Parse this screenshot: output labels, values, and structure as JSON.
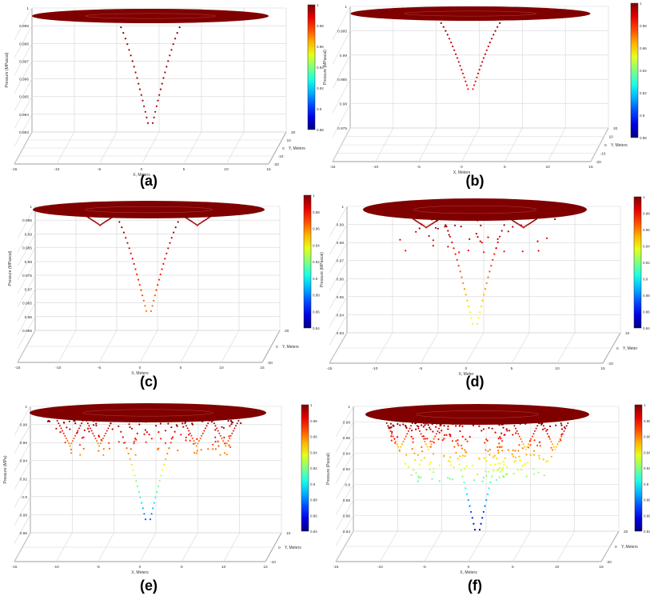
{
  "figure": {
    "panels": [
      {
        "id": "a",
        "caption": "(a)"
      },
      {
        "id": "b",
        "caption": "(b)"
      },
      {
        "id": "c",
        "caption": "(c)"
      },
      {
        "id": "d",
        "caption": "(d)"
      },
      {
        "id": "e",
        "caption": "(e)"
      },
      {
        "id": "f",
        "caption": "(f)"
      }
    ]
  },
  "chart_data": [
    {
      "id": "a",
      "type": "scatter",
      "title": "",
      "xlabel": "X, Meters",
      "ylabel": "Y, Meters",
      "zlabel": "Pressure (MPascal)",
      "xticks": [
        "-15",
        "-10",
        "-5",
        "0",
        "5",
        "10",
        "15"
      ],
      "yticks": [
        "20",
        "10",
        "0",
        "-10",
        "-20"
      ],
      "zticks": [
        "1",
        "0.999",
        "0.998",
        "0.997",
        "0.996",
        "0.995",
        "0.994",
        "0.993"
      ],
      "zlim": [
        0.993,
        1
      ],
      "colorbar": {
        "min": 0.88,
        "max": 1,
        "ticks": [
          "1",
          "0.98",
          "0.96",
          "0.94",
          "0.92",
          "0.9",
          "0.88"
        ]
      },
      "disk_value": 1,
      "funnel_min": 0.9935,
      "grid": true
    },
    {
      "id": "b",
      "type": "scatter",
      "title": "",
      "xlabel": "X, Meters",
      "ylabel": "Y, Meters",
      "zlabel": "Pressure (MPascal)",
      "xticks": [
        "-15",
        "-10",
        "-5",
        "0",
        "5",
        "10",
        "15"
      ],
      "yticks": [
        "20",
        "10",
        "0",
        "-10",
        "-20"
      ],
      "zticks": [
        "1",
        "0.995",
        "0.99",
        "0.985",
        "0.98",
        "0.975"
      ],
      "zlim": [
        0.975,
        1
      ],
      "colorbar": {
        "min": 0.88,
        "max": 1,
        "ticks": [
          "1",
          "0.98",
          "0.96",
          "0.94",
          "0.92",
          "0.9",
          "0.88"
        ]
      },
      "disk_value": 1,
      "funnel_min": 0.983,
      "grid": true
    },
    {
      "id": "c",
      "type": "scatter",
      "title": "",
      "xlabel": "X, Meters",
      "ylabel": "Y, Meters",
      "zlabel": "Pressure (MPascal)",
      "xticks": [
        "-15",
        "-10",
        "-5",
        "0",
        "5",
        "10",
        "15"
      ],
      "yticks": [
        "20",
        "0",
        "-20"
      ],
      "zticks": [
        "1",
        "0.995",
        "0.99",
        "0.985",
        "0.98",
        "0.975",
        "0.97",
        "0.965",
        "0.96",
        "0.955"
      ],
      "zlim": [
        0.955,
        1
      ],
      "colorbar": {
        "min": 0.84,
        "max": 1,
        "ticks": [
          "1",
          "0.98",
          "0.96",
          "0.94",
          "0.92",
          "0.9",
          "0.88",
          "0.86",
          "0.84"
        ]
      },
      "disk_value": 1,
      "funnel_min": 0.962,
      "grid": true
    },
    {
      "id": "d",
      "type": "scatter",
      "title": "",
      "xlabel": "X, Meter",
      "ylabel": "Y, Meter",
      "zlabel": "Pressure (MPascal)",
      "xticks": [
        "-15",
        "-10",
        "-5",
        "0",
        "5",
        "10",
        "15"
      ],
      "yticks": [
        "10",
        "0",
        "-10"
      ],
      "zticks": [
        "1",
        "0.99",
        "0.98",
        "0.97",
        "0.96",
        "0.95",
        "0.94",
        "0.93"
      ],
      "zlim": [
        0.93,
        1
      ],
      "colorbar": {
        "min": 0.84,
        "max": 1,
        "ticks": [
          "1",
          "0.98",
          "0.96",
          "0.94",
          "0.92",
          "0.9",
          "0.88",
          "0.86",
          "0.84"
        ]
      },
      "disk_value": 1,
      "funnel_min": 0.935,
      "grid": true
    },
    {
      "id": "e",
      "type": "scatter",
      "title": "",
      "xlabel": "X, Meters",
      "ylabel": "Y, Meters",
      "zlabel": "Pressure (MPa)",
      "xticks": [
        "-15",
        "-10",
        "-5",
        "0",
        "5",
        "10",
        "15"
      ],
      "yticks": [
        "10",
        "0",
        "-10"
      ],
      "zticks": [
        "1",
        "0.98",
        "0.96",
        "0.94",
        "0.92",
        "0.9",
        "0.88",
        "0.86"
      ],
      "zlim": [
        0.86,
        1
      ],
      "colorbar": {
        "min": 0.84,
        "max": 1,
        "ticks": [
          "1",
          "0.98",
          "0.96",
          "0.94",
          "0.92",
          "0.9",
          "0.88",
          "0.86",
          "0.84"
        ]
      },
      "disk_value": 1,
      "funnel_min": 0.875,
      "grid": true
    },
    {
      "id": "f",
      "type": "scatter",
      "title": "",
      "xlabel": "X, Meters",
      "ylabel": "Y, Meters",
      "zlabel": "Pressure (Pascal)",
      "xticks": [
        "-15",
        "-10",
        "-5",
        "0",
        "5",
        "10",
        "15"
      ],
      "yticks": [
        "20",
        "0",
        "-20"
      ],
      "zticks": [
        "1",
        "0.98",
        "0.96",
        "0.94",
        "0.92",
        "0.9",
        "0.88",
        "0.86",
        "0.84"
      ],
      "zlim": [
        0.84,
        1
      ],
      "colorbar": {
        "min": 0.84,
        "max": 1,
        "ticks": [
          "1",
          "0.98",
          "0.96",
          "0.94",
          "0.92",
          "0.9",
          "0.88",
          "0.86",
          "0.84"
        ]
      },
      "disk_value": 1,
      "funnel_min": 0.842,
      "grid": true
    }
  ]
}
